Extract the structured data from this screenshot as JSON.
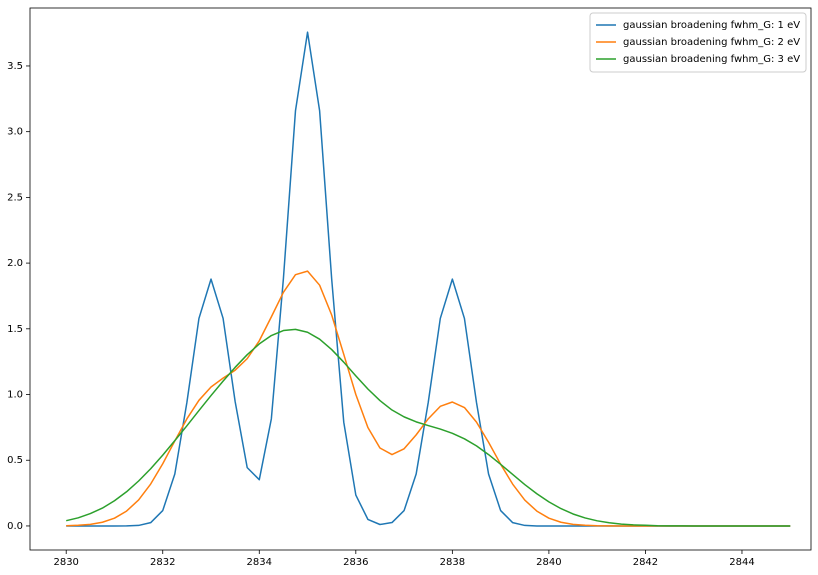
{
  "chart_data": {
    "type": "line",
    "x": [
      2830,
      2830.25,
      2830.5,
      2830.75,
      2831,
      2831.25,
      2831.5,
      2831.75,
      2832,
      2832.25,
      2832.5,
      2832.75,
      2833,
      2833.25,
      2833.5,
      2833.75,
      2834,
      2834.25,
      2834.5,
      2834.75,
      2835,
      2835.25,
      2835.5,
      2835.75,
      2836,
      2836.25,
      2836.5,
      2836.75,
      2837,
      2837.25,
      2837.5,
      2837.75,
      2838,
      2838.25,
      2838.5,
      2838.75,
      2839,
      2839.25,
      2839.5,
      2839.75,
      2840,
      2840.25,
      2840.5,
      2840.75,
      2841,
      2841.25,
      2841.5,
      2841.75,
      2842,
      2842.25,
      2842.5,
      2842.75,
      2843,
      2843.25,
      2843.5,
      2843.75,
      2844,
      2844.25,
      2844.5,
      2844.75,
      2845
    ],
    "series": [
      {
        "name": "gaussian broadening fwhm_G: 1 eV",
        "color": "#1f77b4",
        "values": [
          0,
          0,
          0,
          0,
          0,
          0.0004,
          0.004,
          0.025,
          0.117,
          0.395,
          0.939,
          1.579,
          1.878,
          1.58,
          0.946,
          0.444,
          0.352,
          0.815,
          1.882,
          3.159,
          3.757,
          3.159,
          1.879,
          0.79,
          0.235,
          0.05,
          0.011,
          0.026,
          0.117,
          0.395,
          0.939,
          1.579,
          1.878,
          1.579,
          0.939,
          0.395,
          0.117,
          0.025,
          0.004,
          0,
          0,
          0,
          0,
          0,
          0,
          0,
          0,
          0,
          0,
          0,
          0,
          0,
          0,
          0,
          0,
          0,
          0,
          0,
          0,
          0,
          0
        ]
      },
      {
        "name": "gaussian broadening fwhm_G: 2 eV",
        "color": "#ff7f0e",
        "values": [
          0.002,
          0.005,
          0.012,
          0.028,
          0.059,
          0.113,
          0.198,
          0.319,
          0.473,
          0.647,
          0.815,
          0.956,
          1.057,
          1.125,
          1.185,
          1.273,
          1.409,
          1.591,
          1.778,
          1.912,
          1.939,
          1.832,
          1.605,
          1.306,
          1.0,
          0.749,
          0.593,
          0.543,
          0.587,
          0.693,
          0.815,
          0.91,
          0.943,
          0.901,
          0.79,
          0.637,
          0.47,
          0.318,
          0.197,
          0.113,
          0.059,
          0.028,
          0.012,
          0.005,
          0.002,
          0.001,
          0,
          0,
          0,
          0,
          0,
          0,
          0,
          0,
          0,
          0,
          0,
          0,
          0,
          0,
          0
        ]
      },
      {
        "name": "gaussian broadening fwhm_G: 3 eV",
        "color": "#2ca02c",
        "values": [
          0.04,
          0.062,
          0.094,
          0.136,
          0.192,
          0.26,
          0.342,
          0.435,
          0.539,
          0.649,
          0.762,
          0.878,
          0.992,
          1.102,
          1.207,
          1.303,
          1.385,
          1.449,
          1.487,
          1.496,
          1.474,
          1.421,
          1.342,
          1.246,
          1.142,
          1.042,
          0.954,
          0.882,
          0.83,
          0.792,
          0.764,
          0.737,
          0.705,
          0.663,
          0.609,
          0.543,
          0.469,
          0.392,
          0.315,
          0.245,
          0.183,
          0.132,
          0.091,
          0.061,
          0.039,
          0.024,
          0.014,
          0.008,
          0.005,
          0.002,
          0.001,
          0.001,
          0,
          0,
          0,
          0,
          0,
          0,
          0,
          0,
          0
        ]
      }
    ],
    "xlim": [
      2829.25,
      2845.43
    ],
    "ylim": [
      -0.183,
      3.941
    ],
    "xticks": [
      2830,
      2832,
      2834,
      2836,
      2838,
      2840,
      2842,
      2844
    ],
    "yticks": [
      {
        "value": 0,
        "label": "0.0"
      },
      {
        "value": 0.5,
        "label": "0.5"
      },
      {
        "value": 1,
        "label": "1.0"
      },
      {
        "value": 1.5,
        "label": "1.5"
      },
      {
        "value": 2,
        "label": "2.0"
      },
      {
        "value": 2.5,
        "label": "2.5"
      },
      {
        "value": 3,
        "label": "3.0"
      },
      {
        "value": 3.5,
        "label": "3.5"
      }
    ],
    "legend": "upper right"
  }
}
